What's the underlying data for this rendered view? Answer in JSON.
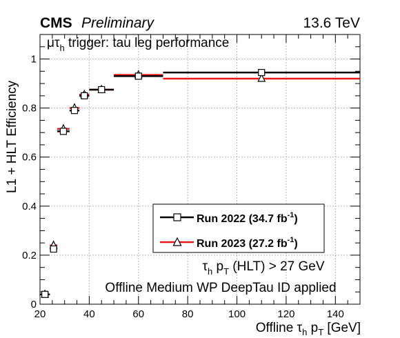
{
  "header": {
    "experiment": "CMS",
    "status": "Preliminary",
    "energy": "13.6 TeV"
  },
  "labels": {
    "trigger_mu": "μτ",
    "trigger_sub": "h",
    "trigger_rest": " trigger: tau leg performance",
    "cut_tau": "τ",
    "cut_tau_sub": "h",
    "cut_p": " p",
    "cut_p_sub": "T",
    "cut_rest": " (HLT) > 27 GeV",
    "id_note": "Offline Medium WP DeepTau ID applied"
  },
  "colors": {
    "run2022": "#000000",
    "run2023": "#e8141a",
    "grid": "#b8b8b8"
  },
  "chart_data": {
    "type": "scatter",
    "ylabel": "L1 + HLT Efficiency",
    "xlabel_parts": {
      "a": "Offline τ",
      "a_sub": "h",
      "b": " p",
      "b_sub": "T",
      "c": " [GeV]"
    },
    "xlim": [
      20,
      150
    ],
    "ylim": [
      0,
      1.1
    ],
    "xticks": [
      20,
      40,
      60,
      80,
      100,
      120,
      140
    ],
    "yticks": [
      0,
      0.2,
      0.4,
      0.6,
      0.8,
      1
    ],
    "ytick_labels": [
      "0",
      "0.2",
      "0.4",
      "0.6",
      "0.8",
      "1"
    ],
    "grid": true,
    "legend_position": "bottom-right",
    "series": [
      {
        "name": "Run 2022 (34.7 fb",
        "name_sup": "-1",
        "name_end": ")",
        "marker": "square",
        "color": "#000000",
        "points": [
          {
            "xlo": 20,
            "xhi": 24,
            "x": 22,
            "y": 0.04
          },
          {
            "xlo": 24,
            "xhi": 27,
            "x": 25.5,
            "y": 0.225
          },
          {
            "xlo": 27,
            "xhi": 32,
            "x": 29.5,
            "y": 0.705
          },
          {
            "xlo": 32,
            "xhi": 36,
            "x": 34,
            "y": 0.79
          },
          {
            "xlo": 36,
            "xhi": 40,
            "x": 38,
            "y": 0.85
          },
          {
            "xlo": 40,
            "xhi": 50,
            "x": 45,
            "y": 0.875
          },
          {
            "xlo": 50,
            "xhi": 70,
            "x": 60,
            "y": 0.93
          },
          {
            "xlo": 70,
            "xhi": 150,
            "x": 110,
            "y": 0.945
          }
        ]
      },
      {
        "name": "Run 2023 (27.2 fb",
        "name_sup": "-1",
        "name_end": ")",
        "marker": "triangle",
        "color": "#e8141a",
        "points": [
          {
            "xlo": 20,
            "xhi": 24,
            "x": 22,
            "y": 0.04
          },
          {
            "xlo": 24,
            "xhi": 27,
            "x": 25.5,
            "y": 0.24
          },
          {
            "xlo": 27,
            "xhi": 32,
            "x": 29.5,
            "y": 0.715
          },
          {
            "xlo": 32,
            "xhi": 36,
            "x": 34,
            "y": 0.8
          },
          {
            "xlo": 36,
            "xhi": 40,
            "x": 38,
            "y": 0.855
          },
          {
            "xlo": 40,
            "xhi": 50,
            "x": 45,
            "y": 0.875
          },
          {
            "xlo": 50,
            "xhi": 70,
            "x": 60,
            "y": 0.935
          },
          {
            "xlo": 70,
            "xhi": 150,
            "x": 110,
            "y": 0.92
          }
        ]
      }
    ]
  }
}
